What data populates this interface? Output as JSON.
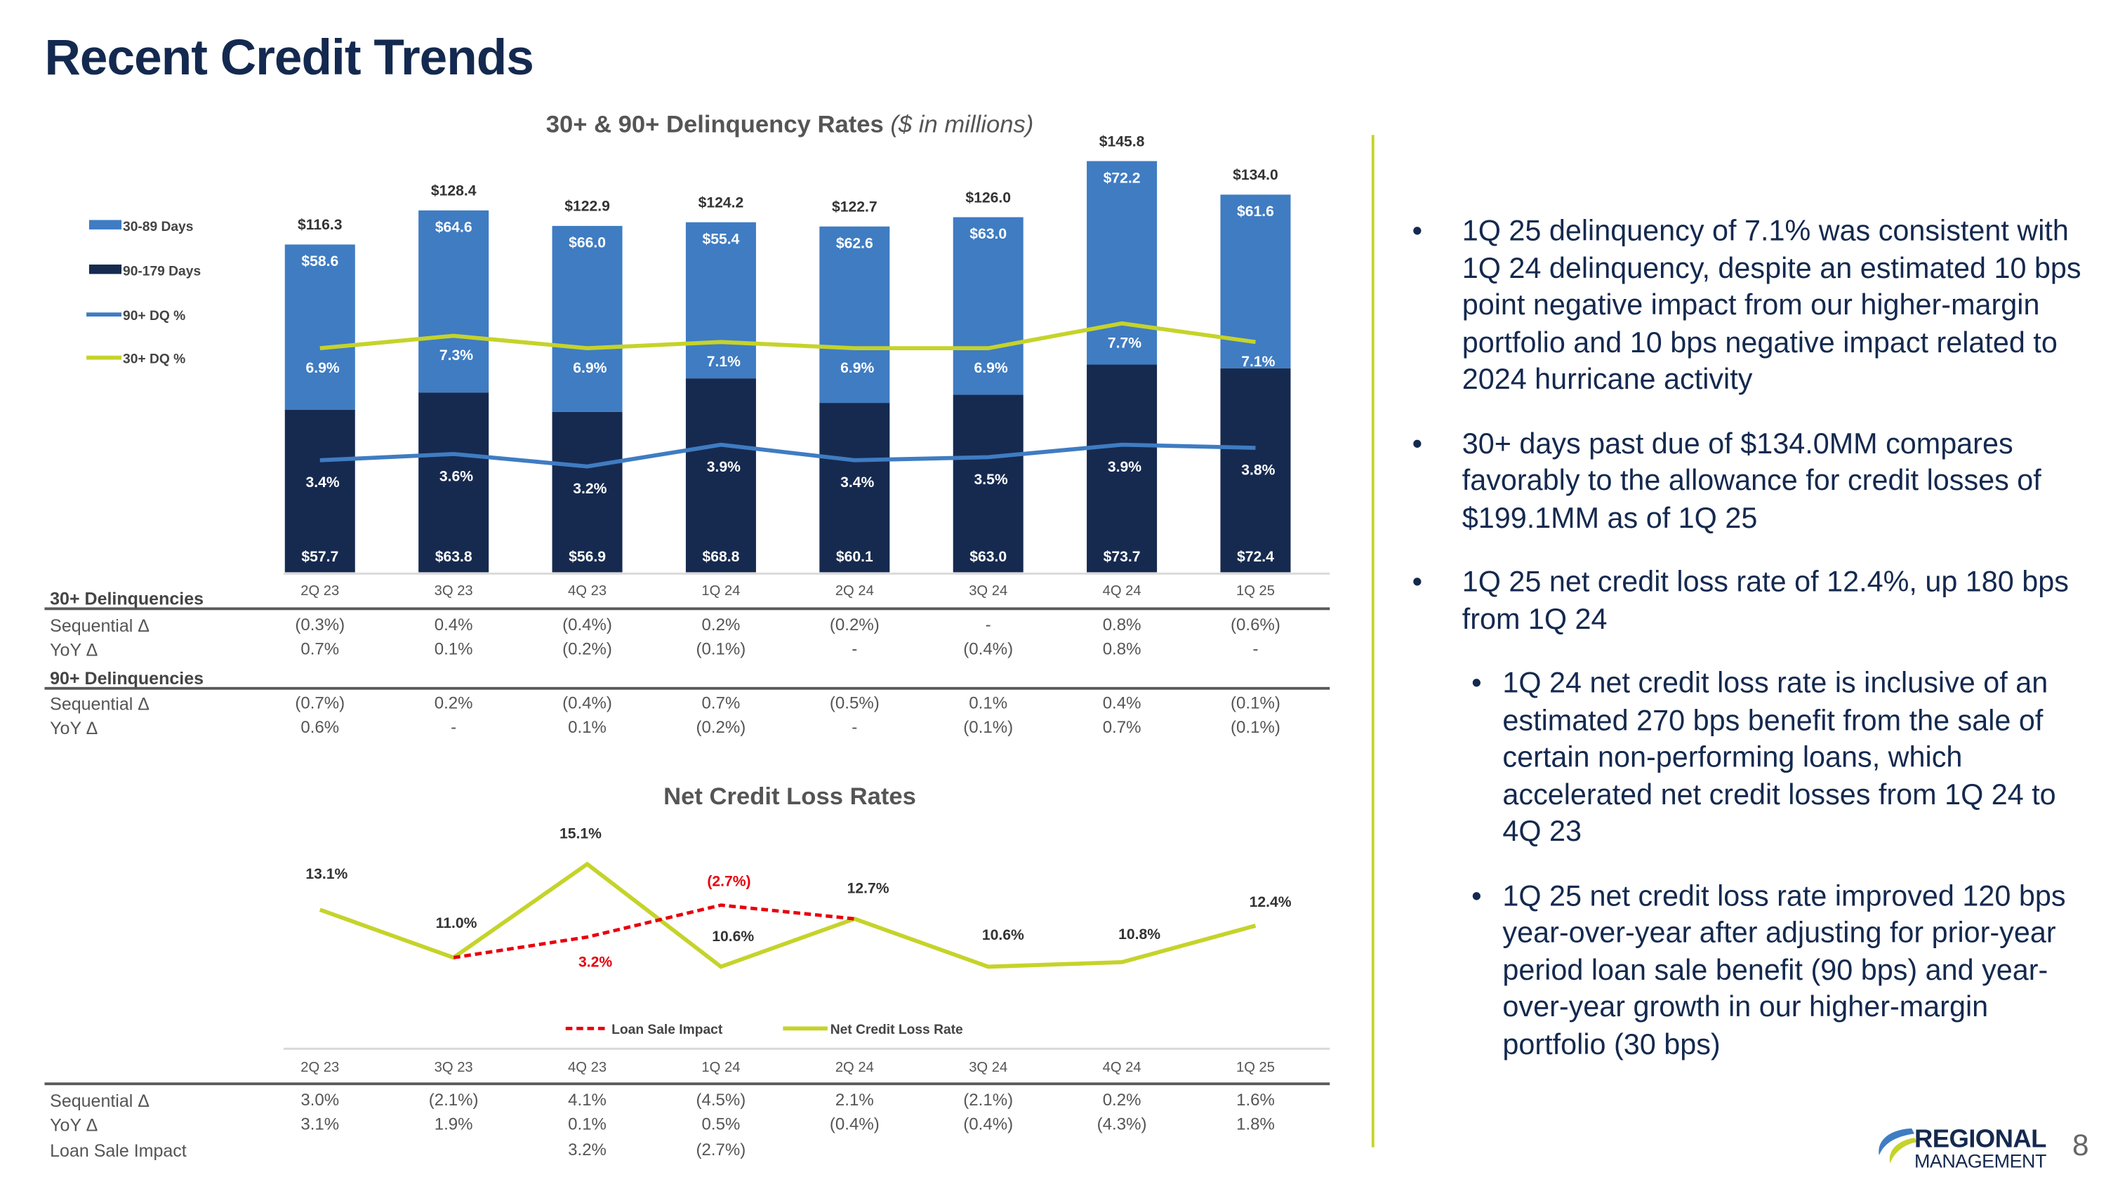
{
  "title": "Recent Credit Trends",
  "page_number": "8",
  "logo": {
    "line1": "REGIONAL",
    "line2": "MANAGEMENT"
  },
  "colors": {
    "navy": "#14294f",
    "light_blue": "#3f7cc2",
    "dark_navy": "#162a50",
    "green": "#c5d32a",
    "red": "#e8000b"
  },
  "chart_data": [
    {
      "type": "bar",
      "title": "30+ & 90+ Delinquency Rates",
      "subtitle": "($ in millions)",
      "categories": [
        "2Q 23",
        "3Q 23",
        "4Q 23",
        "1Q 24",
        "2Q 24",
        "3Q 24",
        "4Q 24",
        "1Q 25"
      ],
      "series": [
        {
          "name": "30-89 Days",
          "values": [
            58.6,
            64.6,
            66.0,
            55.4,
            62.6,
            63.0,
            72.2,
            61.6
          ],
          "labels": [
            "$58.6",
            "$64.6",
            "$66.0",
            "$55.4",
            "$62.6",
            "$63.0",
            "$72.2",
            "$61.6"
          ]
        },
        {
          "name": "90-179 Days",
          "values": [
            57.7,
            63.8,
            56.9,
            68.8,
            60.1,
            63.0,
            73.7,
            72.4
          ],
          "labels": [
            "$57.7",
            "$63.8",
            "$56.9",
            "$68.8",
            "$60.1",
            "$63.0",
            "$73.7",
            "$72.4"
          ]
        },
        {
          "name": "90+ DQ %",
          "values": [
            3.4,
            3.6,
            3.2,
            3.9,
            3.4,
            3.5,
            3.9,
            3.8
          ],
          "labels": [
            "3.4%",
            "3.6%",
            "3.2%",
            "3.9%",
            "3.4%",
            "3.5%",
            "3.9%",
            "3.8%"
          ]
        },
        {
          "name": "30+ DQ %",
          "values": [
            6.9,
            7.3,
            6.9,
            7.1,
            6.9,
            6.9,
            7.7,
            7.1
          ],
          "labels": [
            "6.9%",
            "7.3%",
            "6.9%",
            "7.1%",
            "6.9%",
            "6.9%",
            "7.7%",
            "7.1%"
          ]
        }
      ],
      "totals": [
        "$116.3",
        "$128.4",
        "$122.9",
        "$124.2",
        "$122.7",
        "$126.0",
        "$145.8",
        "$134.0"
      ],
      "legend": "left"
    },
    {
      "type": "line",
      "title": "Net Credit Loss Rates",
      "categories": [
        "2Q 23",
        "3Q 23",
        "4Q 23",
        "1Q 24",
        "2Q 24",
        "3Q 24",
        "4Q 24",
        "1Q 25"
      ],
      "series": [
        {
          "name": "Net Credit Loss Rate",
          "values": [
            13.1,
            11.0,
            15.1,
            10.6,
            12.7,
            10.6,
            10.8,
            12.4
          ],
          "labels": [
            "13.1%",
            "11.0%",
            "15.1%",
            "10.6%",
            "12.7%",
            "10.6%",
            "10.8%",
            "12.4%"
          ]
        },
        {
          "name": "Loan Sale Impact",
          "values": [
            null,
            11.0,
            11.9,
            13.3,
            12.7,
            null,
            null,
            null
          ],
          "labels": [
            null,
            null,
            "3.2%",
            "(2.7%)",
            null,
            null,
            null,
            null
          ]
        }
      ],
      "legend": "bottom"
    }
  ],
  "dq_table": {
    "sections": [
      {
        "header": "30+ Delinquencies",
        "rows": [
          {
            "label": "Sequential Δ",
            "values": [
              "(0.3%)",
              "0.4%",
              "(0.4%)",
              "0.2%",
              "(0.2%)",
              "-",
              "0.8%",
              "(0.6%)"
            ]
          },
          {
            "label": "YoY Δ",
            "values": [
              "0.7%",
              "0.1%",
              "(0.2%)",
              "(0.1%)",
              "-",
              "(0.4%)",
              "0.8%",
              "-"
            ]
          }
        ]
      },
      {
        "header": "90+ Delinquencies",
        "rows": [
          {
            "label": "Sequential Δ",
            "values": [
              "(0.7%)",
              "0.2%",
              "(0.4%)",
              "0.7%",
              "(0.5%)",
              "0.1%",
              "0.4%",
              "(0.1%)"
            ]
          },
          {
            "label": "YoY Δ",
            "values": [
              "0.6%",
              "-",
              "0.1%",
              "(0.2%)",
              "-",
              "(0.1%)",
              "0.7%",
              "(0.1%)"
            ]
          }
        ]
      }
    ]
  },
  "ncl_table": {
    "rows": [
      {
        "label": "Sequential Δ",
        "values": [
          "3.0%",
          "(2.1%)",
          "4.1%",
          "(4.5%)",
          "2.1%",
          "(2.1%)",
          "0.2%",
          "1.6%"
        ]
      },
      {
        "label": "YoY Δ",
        "values": [
          "3.1%",
          "1.9%",
          "0.1%",
          "0.5%",
          "(0.4%)",
          "(0.4%)",
          "(4.3%)",
          "1.8%"
        ]
      },
      {
        "label": "Loan Sale Impact",
        "values": [
          "",
          "",
          "3.2%",
          "(2.7%)",
          "",
          "",
          "",
          ""
        ]
      }
    ]
  },
  "bullets": [
    {
      "text": "1Q 25 delinquency of 7.1% was consistent with 1Q 24 delinquency, despite an estimated 10 bps point negative impact from our higher-margin portfolio and 10 bps negative impact related to 2024 hurricane activity"
    },
    {
      "text": "30+ days past due of $134.0MM compares favorably to the allowance for credit losses of $199.1MM as of 1Q 25"
    },
    {
      "text": "1Q 25 net credit loss rate of 12.4%, up 180 bps from 1Q 24",
      "sub": [
        "1Q 24 net credit loss rate is inclusive of an estimated 270 bps benefit from the sale of certain non-performing loans, which accelerated net credit losses from 1Q 24 to 4Q 23",
        "1Q 25 net credit loss rate improved 120 bps year-over-year after adjusting for prior-year period loan sale benefit (90 bps) and year-over-year growth in our higher-margin portfolio (30 bps)"
      ]
    }
  ]
}
